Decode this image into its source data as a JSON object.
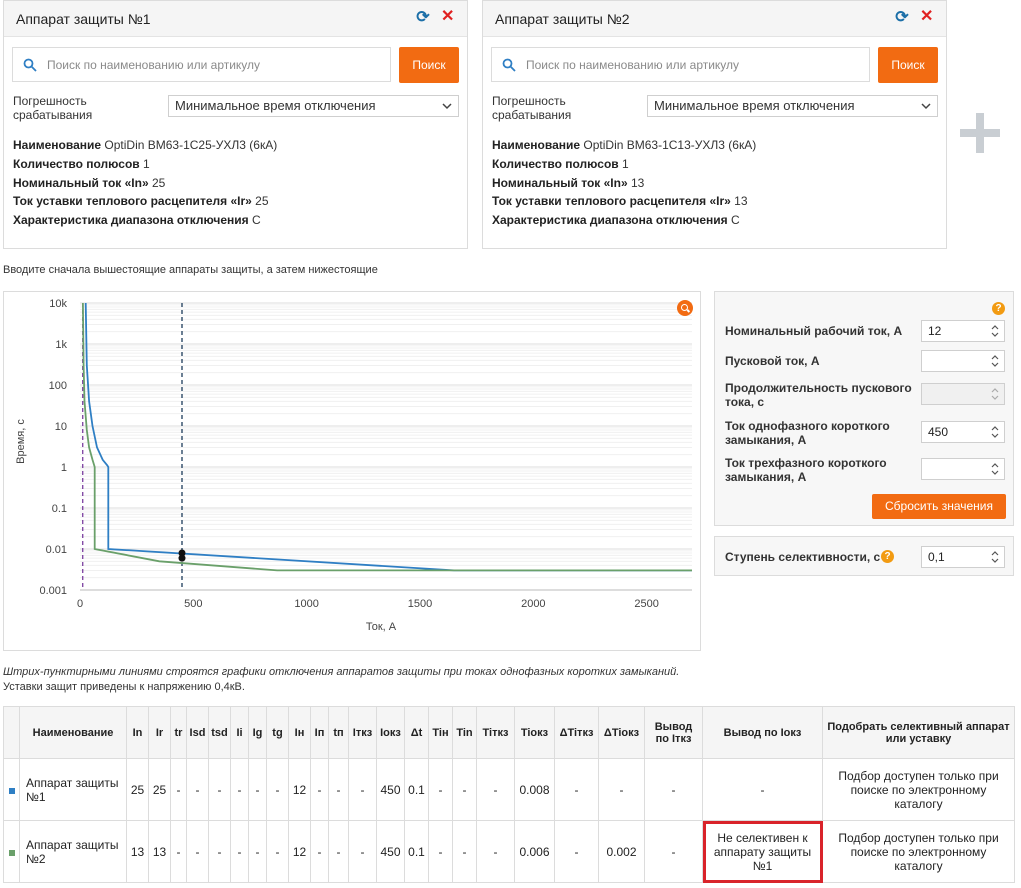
{
  "devices": [
    {
      "title": "Аппарат защиты №1",
      "search_placeholder": "Поиск по наименованию или артикулу",
      "search_button": "Поиск",
      "accuracy_label": "Погрешность срабатывания",
      "accuracy_value": "Минимальное время отключения",
      "name_label": "Наименование",
      "name_value": "OptiDin ВМ63-1С25-УХЛ3 (6кА)",
      "poles_label": "Количество полюсов",
      "poles_value": "1",
      "nominal_label": "Номинальный ток «In»",
      "nominal_value": "25",
      "thermal_label": "Ток уставки теплового расцепителя «Ir»",
      "thermal_value": "25",
      "char_label": "Характеристика диапазона отключения",
      "char_value": "C"
    },
    {
      "title": "Аппарат защиты №2",
      "search_placeholder": "Поиск по наименованию или артикулу",
      "search_button": "Поиск",
      "accuracy_label": "Погрешность срабатывания",
      "accuracy_value": "Минимальное время отключения",
      "name_label": "Наименование",
      "name_value": "OptiDin ВМ63-1С13-УХЛ3 (6кА)",
      "poles_label": "Количество полюсов",
      "poles_value": "1",
      "nominal_label": "Номинальный ток «In»",
      "nominal_value": "13",
      "thermal_label": "Ток уставки теплового расцепителя «Ir»",
      "thermal_value": "13",
      "char_label": "Характеристика диапазона отключения",
      "char_value": "C"
    }
  ],
  "hint": "Вводите сначала вышестоящие аппараты защиты, а затем нижестоящие",
  "chart_data": {
    "type": "line",
    "xlabel": "Ток, А",
    "ylabel": "Время, с",
    "xlim": [
      0,
      2700
    ],
    "ylim": [
      0.001,
      10000
    ],
    "yscale": "log",
    "x_ticks": [
      "0",
      "500",
      "1000",
      "1500",
      "2000",
      "2500"
    ],
    "y_ticks": [
      "10k",
      "1k",
      "100",
      "10",
      "1",
      "0.1",
      "0.01",
      "0.001"
    ],
    "grid": true,
    "series": [
      {
        "color": "#2f7fc4",
        "x": [
          25,
          30,
          40,
          55,
          75,
          100,
          120,
          125,
          125,
          1650,
          2700
        ],
        "y": [
          10000,
          300,
          40,
          10,
          3,
          1.5,
          1.1,
          1.0,
          0.01,
          0.003,
          0.003
        ]
      },
      {
        "color": "#6aa06a",
        "x": [
          13,
          16,
          20,
          30,
          40,
          55,
          65,
          65,
          350,
          870,
          2700
        ],
        "y": [
          10000,
          300,
          40,
          8,
          3,
          1.5,
          1.0,
          0.01,
          0.005,
          0.003,
          0.003
        ]
      }
    ],
    "vlines": [
      {
        "x": 12,
        "color": "#7b3fa0",
        "style": "dash"
      },
      {
        "x": 450,
        "color": "#1c3b5a",
        "style": "dash"
      }
    ],
    "markers": [
      {
        "x": 450,
        "y": 0.008
      },
      {
        "x": 450,
        "y": 0.006
      }
    ]
  },
  "calc": {
    "labels": {
      "rated": "Номинальный рабочий ток, А",
      "start": "Пусковой ток, А",
      "start_duration": "Продолжительность пускового тока, с",
      "sc1": "Ток однофазного короткого замыкания, А",
      "sc3": "Ток трехфазного короткого замыкания, А"
    },
    "values": {
      "rated": "12",
      "start": "",
      "start_duration": "",
      "sc1": "450",
      "sc3": ""
    },
    "reset_button": "Сбросить значения",
    "help": "?"
  },
  "selectivity": {
    "label": "Ступень селективности, с",
    "value": "0,1",
    "help": "?"
  },
  "notes": {
    "line1": "Штрих-пунктирными линиями строятся графики отключения аппаратов защиты при токах однофазных коротких замыканий.",
    "line2": "Уставки защит приведены к напряжению 0,4кВ."
  },
  "table": {
    "headers": [
      "Наименование",
      "In",
      "Ir",
      "tr",
      "Isd",
      "tsd",
      "Ii",
      "Ig",
      "tg",
      "Iн",
      "Iп",
      "tп",
      "Iткз",
      "Iокз",
      "Δt",
      "Tiн",
      "Tin",
      "Tiткз",
      "Tiокз",
      "ΔTiткз",
      "ΔTiокз",
      "Вывод по Iткз",
      "Вывод по Iокз",
      "Подобрать селективный аппарат или уставку"
    ],
    "rows": [
      {
        "color": "#2f7fc4",
        "cells": [
          "Аппарат защиты №1",
          "25",
          "25",
          "-",
          "-",
          "-",
          "-",
          "-",
          "-",
          "12",
          "-",
          "-",
          "-",
          "450",
          "0.1",
          "-",
          "-",
          "-",
          "0.008",
          "-",
          "-",
          "-",
          "-",
          "Подбор доступен только при поиске по электронному каталогу"
        ]
      },
      {
        "color": "#6aa06a",
        "cells": [
          "Аппарат защиты №2",
          "13",
          "13",
          "-",
          "-",
          "-",
          "-",
          "-",
          "-",
          "12",
          "-",
          "-",
          "-",
          "450",
          "0.1",
          "-",
          "-",
          "-",
          "0.006",
          "-",
          "0.002",
          "-",
          "Не селективен к аппарату защиты №1",
          "Подбор доступен только при поиске по электронному каталогу"
        ]
      }
    ]
  }
}
